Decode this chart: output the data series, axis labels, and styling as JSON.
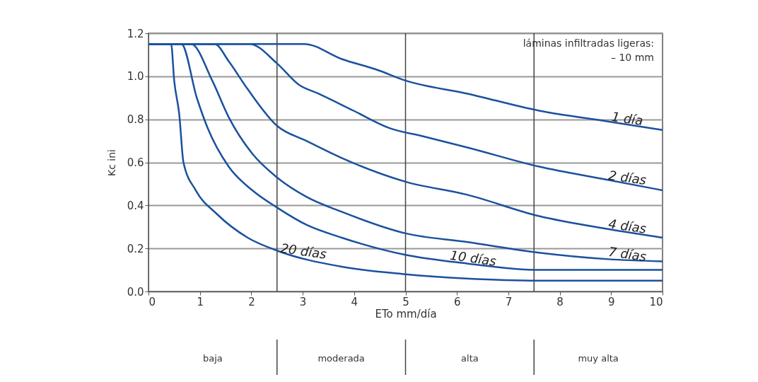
{
  "chart_data": {
    "type": "line",
    "xlabel": "ETo mm/día",
    "ylabel": "Kc ini",
    "xlim": [
      0,
      10
    ],
    "ylim": [
      0,
      1.2
    ],
    "xticks": [
      0,
      1,
      2,
      3,
      4,
      5,
      6,
      7,
      8,
      9,
      10
    ],
    "yticks": [
      {
        "value": 0,
        "label": "0.0"
      },
      {
        "value": 0.2,
        "label": "0.2"
      },
      {
        "value": 0.4,
        "label": "0.4"
      },
      {
        "value": 0.6,
        "label": "0.6"
      },
      {
        "value": 0.8,
        "label": "0.8"
      },
      {
        "value": 1.0,
        "label": "1.0"
      },
      {
        "value": 1.2,
        "label": "1.2"
      }
    ],
    "grid": "y",
    "marker": "none",
    "line_style": "solid",
    "series": [
      {
        "name": "1 día",
        "color": "#1b519e",
        "x": [
          0,
          3.03,
          3.76,
          4.45,
          5,
          6.19,
          7.6,
          8.94,
          10
        ],
        "values": [
          1.15,
          1.15,
          1.08,
          1.03,
          0.98,
          0.92,
          0.84,
          0.79,
          0.75
        ]
      },
      {
        "name": "2 días",
        "color": "#1b519e",
        "x": [
          0,
          1.97,
          2.5,
          2.93,
          3.3,
          3.99,
          4.68,
          5.36,
          6.19,
          7.6,
          8.9,
          10
        ],
        "values": [
          1.15,
          1.15,
          1.06,
          0.96,
          0.92,
          0.84,
          0.76,
          0.72,
          0.67,
          0.58,
          0.52,
          0.47
        ]
      },
      {
        "name": "4 días",
        "color": "#1b519e",
        "x": [
          0,
          1.29,
          1.56,
          1.93,
          2.5,
          3.07,
          3.76,
          5,
          6.19,
          7.6,
          8.94,
          10
        ],
        "values": [
          1.15,
          1.15,
          1.07,
          0.94,
          0.77,
          0.7,
          0.62,
          0.51,
          0.45,
          0.35,
          0.29,
          0.25
        ]
      },
      {
        "name": "7 días",
        "color": "#1b519e",
        "x": [
          0,
          0.83,
          1.24,
          1.56,
          2.02,
          2.5,
          3.07,
          3.76,
          5,
          6.19,
          7.6,
          8.94,
          10
        ],
        "values": [
          1.15,
          1.15,
          0.98,
          0.81,
          0.64,
          0.53,
          0.44,
          0.37,
          0.27,
          0.23,
          0.18,
          0.15,
          0.14
        ]
      },
      {
        "name": "10 días",
        "color": "#1b519e",
        "x": [
          0,
          0.64,
          0.94,
          1.15,
          1.56,
          2.02,
          2.5,
          3.07,
          3.76,
          5,
          6.19,
          7.6,
          10
        ],
        "values": [
          1.15,
          1.15,
          0.9,
          0.76,
          0.58,
          0.47,
          0.39,
          0.31,
          0.25,
          0.17,
          0.13,
          0.1,
          0.1
        ]
      },
      {
        "name": "20 días",
        "color": "#1b519e",
        "x": [
          0,
          0.44,
          0.5,
          0.6,
          0.68,
          0.92,
          1.33,
          1.93,
          2.5,
          3.76,
          5,
          6.19,
          7.6,
          10
        ],
        "values": [
          1.15,
          1.15,
          0.98,
          0.82,
          0.6,
          0.47,
          0.36,
          0.25,
          0.19,
          0.115,
          0.08,
          0.06,
          0.05,
          0.05
        ]
      }
    ],
    "ref_lines": [
      {
        "axis": "x",
        "value": 2.5
      },
      {
        "axis": "x",
        "value": 5
      },
      {
        "axis": "x",
        "value": 7.5
      }
    ],
    "annotations": [
      "láminas infiltradas ligeras:\n– 10 mm",
      "baja",
      "moderada",
      "alta",
      "muy alta"
    ]
  }
}
